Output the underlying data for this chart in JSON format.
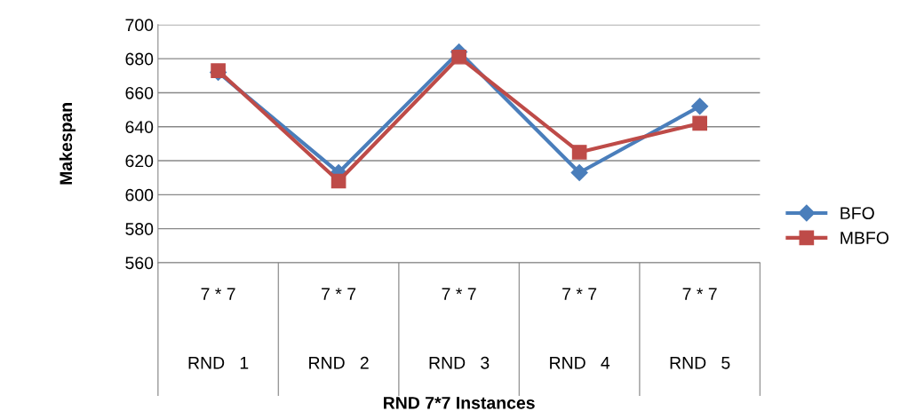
{
  "chart_data": {
    "type": "line",
    "annotations": [
      "RND 7*7 Instances"
    ],
    "ylabel": "Makespan",
    "categories": [
      "7 * 7\n\n\nRND   1",
      "7 * 7\n\n\nRND   2",
      "7 * 7\n\n\nRND   3",
      "7 * 7\n\n\nRND   4",
      "7 * 7\n\n\nRND   5"
    ],
    "series": [
      {
        "name": "BFO",
        "color": "#4a7ebb",
        "marker": "diamond",
        "values": [
          672,
          613,
          684,
          613,
          652
        ]
      },
      {
        "name": "MBFO",
        "color": "#be4b48",
        "marker": "square",
        "values": [
          673,
          608,
          681,
          625,
          642
        ]
      }
    ],
    "ylim": [
      560,
      700
    ],
    "yticks": [
      560,
      580,
      600,
      620,
      640,
      660,
      680,
      700
    ],
    "grid": "y",
    "legend": "right"
  }
}
